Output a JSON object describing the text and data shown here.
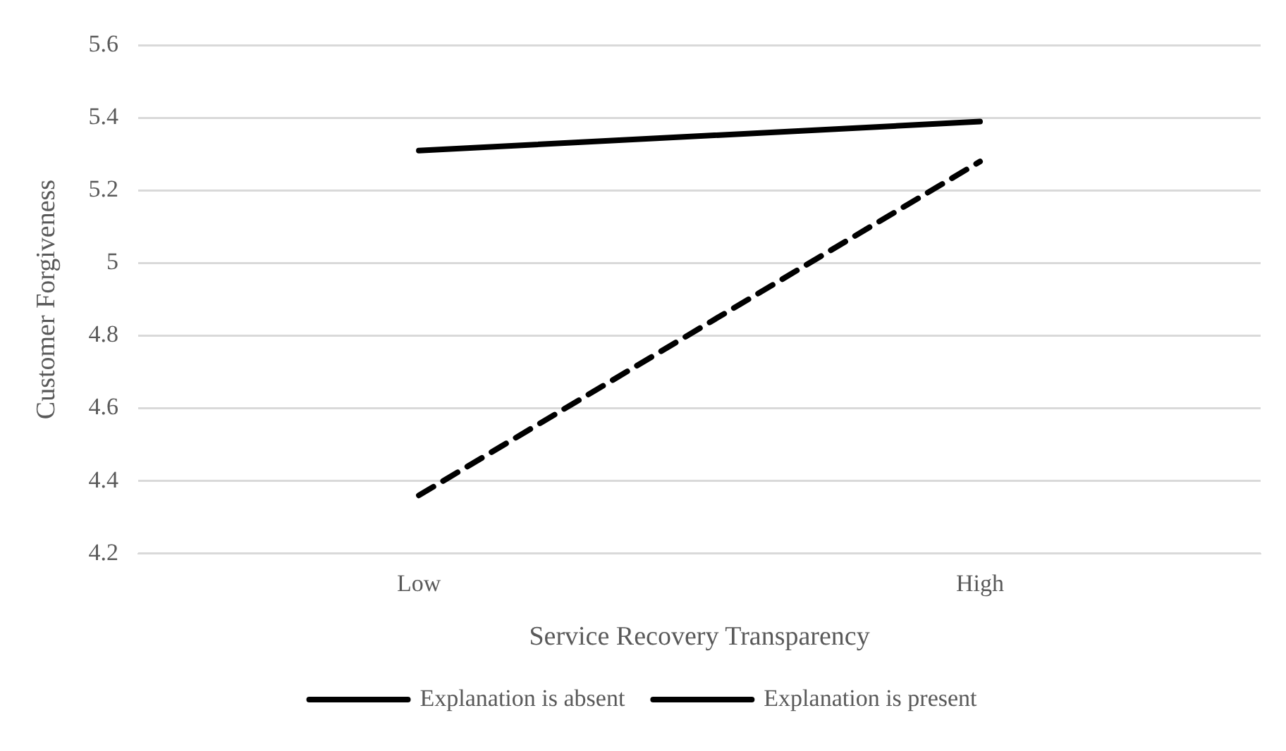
{
  "chart_data": {
    "type": "line",
    "xlabel": "Service Recovery Transparency",
    "ylabel": "Customer Forgiveness",
    "categories": [
      "Low",
      "High"
    ],
    "series": [
      {
        "name": "Explanation is absent",
        "color": "#000000",
        "values": [
          4.36,
          5.28
        ],
        "line_style": "dashed"
      },
      {
        "name": "Explanation is present",
        "color": "#000000",
        "values": [
          5.31,
          5.39
        ],
        "line_style": "solid"
      }
    ],
    "ylim": [
      4.2,
      5.6
    ],
    "yticks": [
      4.2,
      4.4,
      4.6,
      4.8,
      5,
      5.2,
      5.4,
      5.6
    ],
    "grid": "y",
    "legend": "bottom",
    "marker": "none"
  }
}
